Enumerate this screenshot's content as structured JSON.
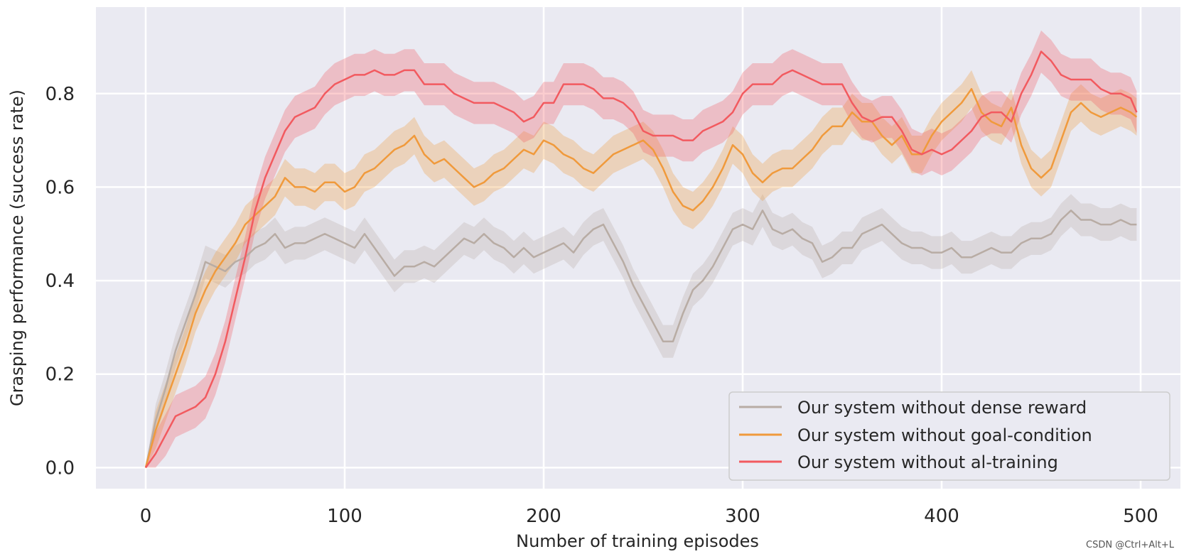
{
  "chart_data": {
    "type": "line",
    "title": "",
    "xlabel": "Number of training episodes",
    "ylabel": "Grasping performance (success rate)",
    "xlim": [
      -25,
      520
    ],
    "ylim": [
      -0.045,
      0.985
    ],
    "xticks": [
      0,
      100,
      200,
      300,
      400,
      500
    ],
    "xtick_labels": [
      "0",
      "100",
      "200",
      "300",
      "400",
      "500"
    ],
    "yticks": [
      0.0,
      0.2,
      0.4,
      0.6,
      0.8
    ],
    "ytick_labels": [
      "0.0",
      "0.2",
      "0.4",
      "0.6",
      "0.8"
    ],
    "grid": true,
    "legend_position": "bottom-right",
    "x": [
      0,
      5,
      10,
      15,
      20,
      25,
      30,
      35,
      40,
      45,
      50,
      55,
      60,
      65,
      70,
      75,
      80,
      85,
      90,
      95,
      100,
      105,
      110,
      115,
      120,
      125,
      130,
      135,
      140,
      145,
      150,
      155,
      160,
      165,
      170,
      175,
      180,
      185,
      190,
      195,
      200,
      205,
      210,
      215,
      220,
      225,
      230,
      235,
      240,
      245,
      250,
      255,
      260,
      265,
      270,
      275,
      280,
      285,
      290,
      295,
      300,
      305,
      310,
      315,
      320,
      325,
      330,
      335,
      340,
      345,
      350,
      355,
      360,
      365,
      370,
      375,
      380,
      385,
      390,
      395,
      400,
      405,
      410,
      415,
      420,
      425,
      430,
      435,
      440,
      445,
      450,
      455,
      460,
      465,
      470,
      475,
      480,
      485,
      490,
      495,
      498
    ],
    "series": [
      {
        "name": "Our system without dense reward",
        "color": "#b8aca4",
        "band_width": 0.035,
        "values": [
          0.0,
          0.1,
          0.17,
          0.25,
          0.31,
          0.37,
          0.44,
          0.43,
          0.42,
          0.44,
          0.45,
          0.47,
          0.48,
          0.5,
          0.47,
          0.48,
          0.48,
          0.49,
          0.5,
          0.49,
          0.48,
          0.47,
          0.5,
          0.47,
          0.44,
          0.41,
          0.43,
          0.43,
          0.44,
          0.43,
          0.45,
          0.47,
          0.49,
          0.48,
          0.5,
          0.48,
          0.47,
          0.45,
          0.47,
          0.45,
          0.46,
          0.47,
          0.48,
          0.46,
          0.49,
          0.51,
          0.52,
          0.48,
          0.44,
          0.39,
          0.35,
          0.31,
          0.27,
          0.27,
          0.33,
          0.38,
          0.4,
          0.43,
          0.47,
          0.51,
          0.52,
          0.51,
          0.55,
          0.51,
          0.5,
          0.51,
          0.49,
          0.48,
          0.44,
          0.45,
          0.47,
          0.47,
          0.5,
          0.51,
          0.52,
          0.5,
          0.48,
          0.47,
          0.47,
          0.46,
          0.46,
          0.47,
          0.45,
          0.45,
          0.46,
          0.47,
          0.46,
          0.46,
          0.48,
          0.49,
          0.49,
          0.5,
          0.53,
          0.55,
          0.53,
          0.53,
          0.52,
          0.52,
          0.53,
          0.52,
          0.52
        ]
      },
      {
        "name": "Our system without goal-condition",
        "color": "#f09a3c",
        "band_width": 0.04,
        "values": [
          0.0,
          0.08,
          0.14,
          0.2,
          0.26,
          0.33,
          0.38,
          0.42,
          0.45,
          0.48,
          0.52,
          0.54,
          0.56,
          0.58,
          0.62,
          0.6,
          0.6,
          0.59,
          0.61,
          0.61,
          0.59,
          0.6,
          0.63,
          0.64,
          0.66,
          0.68,
          0.69,
          0.71,
          0.67,
          0.65,
          0.66,
          0.64,
          0.62,
          0.6,
          0.61,
          0.63,
          0.64,
          0.66,
          0.68,
          0.67,
          0.7,
          0.69,
          0.67,
          0.66,
          0.64,
          0.63,
          0.65,
          0.67,
          0.68,
          0.69,
          0.7,
          0.68,
          0.64,
          0.59,
          0.56,
          0.55,
          0.57,
          0.6,
          0.64,
          0.69,
          0.67,
          0.63,
          0.61,
          0.63,
          0.64,
          0.64,
          0.66,
          0.68,
          0.71,
          0.73,
          0.73,
          0.76,
          0.74,
          0.74,
          0.71,
          0.69,
          0.71,
          0.67,
          0.67,
          0.71,
          0.74,
          0.76,
          0.78,
          0.81,
          0.76,
          0.74,
          0.73,
          0.77,
          0.69,
          0.64,
          0.62,
          0.64,
          0.7,
          0.76,
          0.78,
          0.76,
          0.75,
          0.76,
          0.77,
          0.76,
          0.75
        ]
      },
      {
        "name": "Our system without al-training",
        "color": "#f25a5f",
        "band_width": 0.045,
        "values": [
          0.0,
          0.03,
          0.07,
          0.11,
          0.12,
          0.13,
          0.15,
          0.2,
          0.27,
          0.36,
          0.45,
          0.55,
          0.62,
          0.67,
          0.72,
          0.75,
          0.76,
          0.77,
          0.8,
          0.82,
          0.83,
          0.84,
          0.84,
          0.85,
          0.84,
          0.84,
          0.85,
          0.85,
          0.82,
          0.82,
          0.82,
          0.8,
          0.79,
          0.78,
          0.78,
          0.78,
          0.77,
          0.76,
          0.74,
          0.75,
          0.78,
          0.78,
          0.82,
          0.82,
          0.82,
          0.81,
          0.79,
          0.79,
          0.78,
          0.76,
          0.72,
          0.71,
          0.71,
          0.71,
          0.7,
          0.7,
          0.72,
          0.73,
          0.74,
          0.76,
          0.8,
          0.82,
          0.82,
          0.82,
          0.84,
          0.85,
          0.84,
          0.83,
          0.82,
          0.82,
          0.82,
          0.78,
          0.75,
          0.74,
          0.75,
          0.75,
          0.72,
          0.68,
          0.67,
          0.68,
          0.67,
          0.68,
          0.7,
          0.72,
          0.75,
          0.76,
          0.76,
          0.74,
          0.8,
          0.84,
          0.89,
          0.87,
          0.84,
          0.83,
          0.83,
          0.83,
          0.81,
          0.8,
          0.8,
          0.79,
          0.76
        ]
      }
    ]
  },
  "watermark": "CSDN @Ctrl+Alt+L"
}
